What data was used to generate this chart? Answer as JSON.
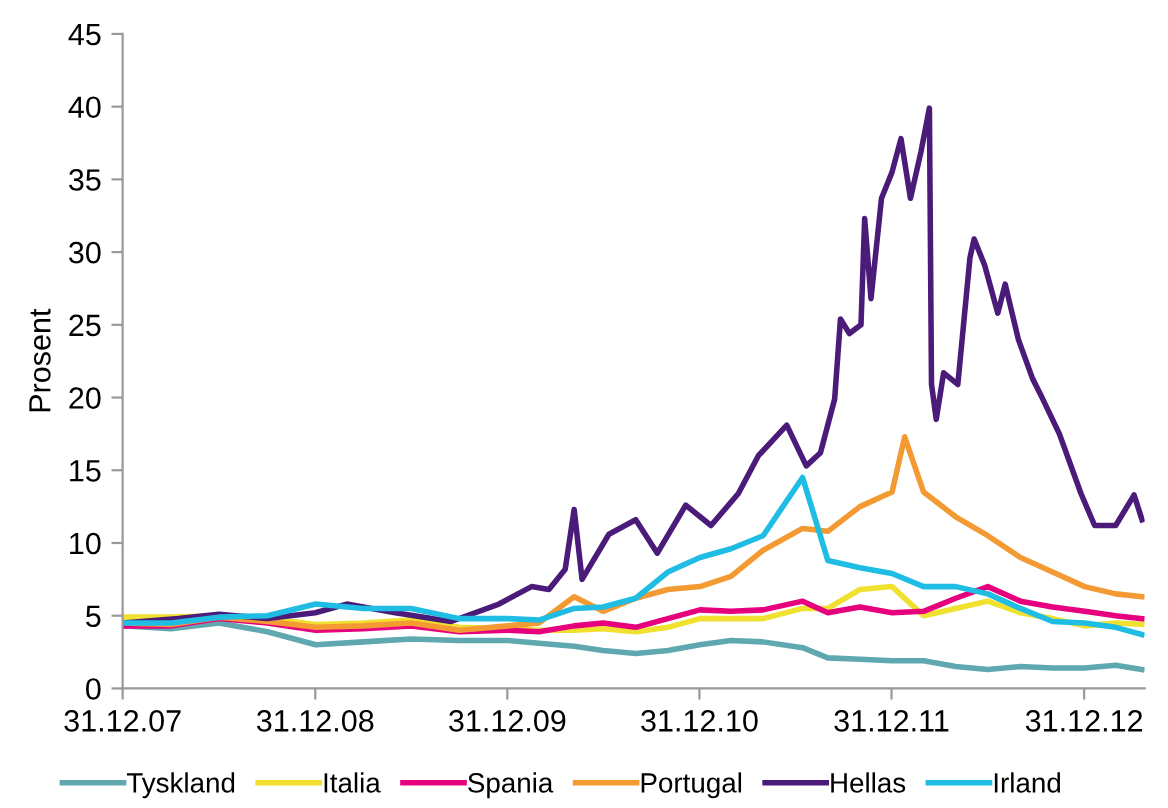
{
  "chart_data": {
    "type": "line",
    "ylabel": "Prosent",
    "ylim": [
      0,
      45
    ],
    "yticks": [
      0,
      5,
      10,
      15,
      20,
      25,
      30,
      35,
      40,
      45
    ],
    "xlim": [
      "2007-12-31",
      "2013-04-25"
    ],
    "xticks": [
      {
        "value": "2007-12-31",
        "label": "31.12.07"
      },
      {
        "value": "2008-12-31",
        "label": "31.12.08"
      },
      {
        "value": "2009-12-31",
        "label": "31.12.09"
      },
      {
        "value": "2010-12-31",
        "label": "31.12.10"
      },
      {
        "value": "2011-12-31",
        "label": "31.12.11"
      },
      {
        "value": "2012-12-31",
        "label": "31.12.12"
      }
    ],
    "grid": false,
    "legend": "bottom",
    "marker": "none",
    "line_style": "solid",
    "series": [
      {
        "name": "Tyskland",
        "color": "#5fa8b0",
        "x": [
          "2008-01-01",
          "2008-04-01",
          "2008-07-01",
          "2008-10-01",
          "2009-01-01",
          "2009-04-01",
          "2009-07-01",
          "2009-10-01",
          "2010-01-01",
          "2010-03-01",
          "2010-05-07",
          "2010-07-01",
          "2010-09-01",
          "2010-11-01",
          "2011-01-01",
          "2011-03-01",
          "2011-05-01",
          "2011-07-15",
          "2011-09-01",
          "2011-11-01",
          "2012-01-01",
          "2012-03-01",
          "2012-05-01",
          "2012-07-01",
          "2012-09-01",
          "2012-11-01",
          "2013-01-01",
          "2013-03-01",
          "2013-04-20"
        ],
        "values": [
          4.3,
          4.1,
          4.5,
          3.9,
          3.0,
          3.2,
          3.4,
          3.3,
          3.3,
          3.1,
          2.9,
          2.6,
          2.4,
          2.6,
          3.0,
          3.3,
          3.2,
          2.8,
          2.1,
          2.0,
          1.9,
          1.9,
          1.5,
          1.3,
          1.5,
          1.4,
          1.4,
          1.6,
          1.3
        ]
      },
      {
        "name": "Italia",
        "color": "#f0e130",
        "x": [
          "2008-01-01",
          "2008-04-01",
          "2008-07-01",
          "2008-10-01",
          "2009-01-01",
          "2009-04-01",
          "2009-07-01",
          "2009-10-01",
          "2010-01-01",
          "2010-03-01",
          "2010-05-07",
          "2010-07-01",
          "2010-09-01",
          "2010-11-01",
          "2011-01-01",
          "2011-03-01",
          "2011-05-01",
          "2011-07-15",
          "2011-09-01",
          "2011-11-01",
          "2012-01-01",
          "2012-03-01",
          "2012-05-01",
          "2012-07-01",
          "2012-09-01",
          "2012-11-01",
          "2013-01-01",
          "2013-03-01",
          "2013-04-20"
        ],
        "values": [
          4.9,
          4.9,
          5.0,
          4.8,
          4.4,
          4.5,
          4.7,
          4.2,
          4.1,
          4.0,
          4.0,
          4.1,
          3.9,
          4.2,
          4.8,
          4.8,
          4.8,
          5.5,
          5.5,
          6.8,
          7.0,
          5.0,
          5.5,
          6.0,
          5.2,
          4.8,
          4.3,
          4.5,
          4.4
        ]
      },
      {
        "name": "Spania",
        "color": "#e6007e",
        "x": [
          "2008-01-01",
          "2008-04-01",
          "2008-07-01",
          "2008-10-01",
          "2009-01-01",
          "2009-04-01",
          "2009-07-01",
          "2009-10-01",
          "2010-01-01",
          "2010-03-01",
          "2010-05-07",
          "2010-07-01",
          "2010-09-01",
          "2010-11-01",
          "2011-01-01",
          "2011-03-01",
          "2011-05-01",
          "2011-07-15",
          "2011-09-01",
          "2011-11-01",
          "2012-01-01",
          "2012-03-01",
          "2012-05-01",
          "2012-07-01",
          "2012-09-01",
          "2012-11-01",
          "2013-01-01",
          "2013-03-01",
          "2013-04-20"
        ],
        "values": [
          4.3,
          4.3,
          4.8,
          4.5,
          4.0,
          4.1,
          4.3,
          3.9,
          4.0,
          3.9,
          4.3,
          4.5,
          4.2,
          4.8,
          5.4,
          5.3,
          5.4,
          6.0,
          5.2,
          5.6,
          5.2,
          5.3,
          6.2,
          7.0,
          6.0,
          5.6,
          5.3,
          5.0,
          4.8
        ]
      },
      {
        "name": "Portugal",
        "color": "#f39a33",
        "x": [
          "2008-01-01",
          "2008-04-01",
          "2008-07-01",
          "2008-10-01",
          "2009-01-01",
          "2009-04-01",
          "2009-07-01",
          "2009-10-01",
          "2010-01-01",
          "2010-03-01",
          "2010-05-07",
          "2010-07-01",
          "2010-09-01",
          "2010-11-01",
          "2011-01-01",
          "2011-03-01",
          "2011-05-01",
          "2011-07-15",
          "2011-09-01",
          "2011-11-01",
          "2012-01-01",
          "2012-01-25",
          "2012-03-01",
          "2012-05-01",
          "2012-07-01",
          "2012-09-01",
          "2012-11-01",
          "2013-01-01",
          "2013-03-01",
          "2013-04-20"
        ],
        "values": [
          4.5,
          4.4,
          4.9,
          4.6,
          4.2,
          4.3,
          4.5,
          4.0,
          4.3,
          4.5,
          6.3,
          5.3,
          6.2,
          6.8,
          7.0,
          7.7,
          9.5,
          11.0,
          10.8,
          12.5,
          13.5,
          17.3,
          13.5,
          11.8,
          10.5,
          9.0,
          8.0,
          7.0,
          6.5,
          6.3
        ]
      },
      {
        "name": "Hellas",
        "color": "#4b1b7a",
        "x": [
          "2008-01-01",
          "2008-04-15",
          "2008-07-01",
          "2008-10-01",
          "2008-12-31",
          "2009-03-01",
          "2009-06-01",
          "2009-09-15",
          "2009-12-15",
          "2010-02-15",
          "2010-03-20",
          "2010-04-20",
          "2010-05-07",
          "2010-05-22",
          "2010-07-12",
          "2010-09-01",
          "2010-10-12",
          "2010-12-05",
          "2011-01-22",
          "2011-03-15",
          "2011-04-22",
          "2011-06-15",
          "2011-07-22",
          "2011-08-18",
          "2011-09-14",
          "2011-09-25",
          "2011-10-12",
          "2011-11-03",
          "2011-11-10",
          "2011-11-22",
          "2011-12-12",
          "2012-01-01",
          "2012-01-18",
          "2012-02-05",
          "2012-02-25",
          "2012-03-12",
          "2012-03-16",
          "2012-03-25",
          "2012-04-08",
          "2012-05-05",
          "2012-05-28",
          "2012-06-05",
          "2012-06-25",
          "2012-07-20",
          "2012-08-03",
          "2012-08-28",
          "2012-09-24",
          "2012-10-08",
          "2012-11-14",
          "2012-12-25",
          "2013-01-20",
          "2013-03-01",
          "2013-04-05",
          "2013-04-20"
        ],
        "values": [
          4.5,
          4.8,
          5.1,
          4.8,
          5.2,
          5.8,
          5.2,
          4.6,
          5.8,
          7.0,
          6.8,
          8.2,
          12.3,
          7.5,
          10.6,
          11.6,
          9.3,
          12.6,
          11.2,
          13.4,
          16.0,
          18.1,
          15.3,
          16.2,
          19.9,
          25.4,
          24.4,
          25.0,
          32.3,
          26.8,
          33.7,
          35.5,
          37.8,
          33.7,
          36.9,
          39.9,
          20.9,
          18.5,
          21.7,
          20.9,
          29.6,
          30.9,
          29.1,
          25.8,
          27.8,
          24.0,
          21.3,
          20.3,
          17.5,
          13.4,
          11.2,
          11.2,
          13.3,
          11.6
        ]
      },
      {
        "name": "Irland",
        "color": "#1fbce3",
        "x": [
          "2008-01-01",
          "2008-04-01",
          "2008-07-01",
          "2008-10-01",
          "2009-01-01",
          "2009-04-01",
          "2009-07-01",
          "2009-10-01",
          "2010-01-01",
          "2010-03-01",
          "2010-05-07",
          "2010-07-01",
          "2010-09-01",
          "2010-11-01",
          "2011-01-01",
          "2011-03-01",
          "2011-05-01",
          "2011-07-15",
          "2011-09-01",
          "2011-11-01",
          "2012-01-01",
          "2012-03-01",
          "2012-05-01",
          "2012-07-01",
          "2012-09-01",
          "2012-11-01",
          "2013-01-01",
          "2013-03-01",
          "2013-04-20"
        ],
        "values": [
          4.5,
          4.5,
          4.9,
          5.0,
          5.8,
          5.5,
          5.5,
          4.8,
          4.8,
          4.7,
          5.5,
          5.6,
          6.2,
          8.0,
          9.0,
          9.6,
          10.5,
          14.5,
          8.8,
          8.3,
          7.9,
          7.0,
          7.0,
          6.5,
          5.5,
          4.6,
          4.5,
          4.2,
          3.7
        ]
      }
    ]
  }
}
